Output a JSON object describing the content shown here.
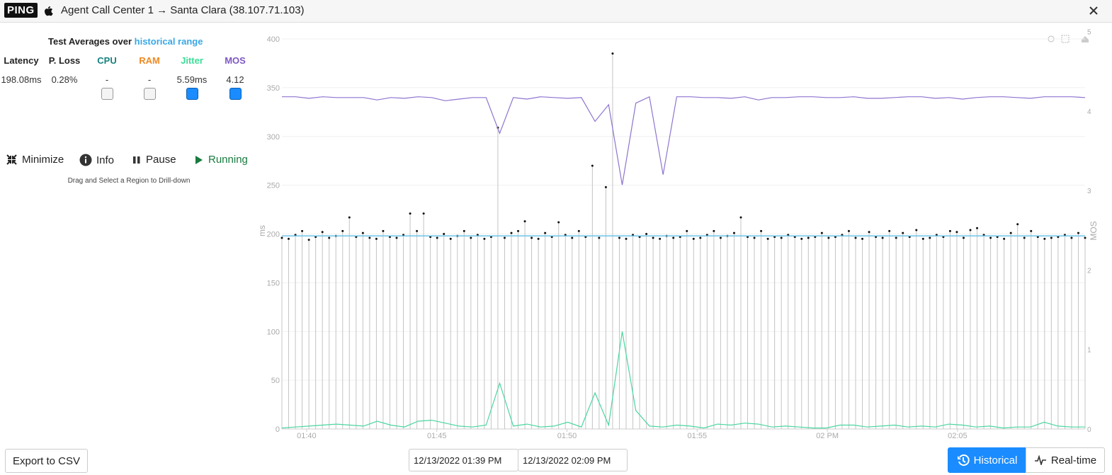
{
  "header": {
    "badge": "PING",
    "title": "Agent Call Center 1 → Santa Clara (38.107.71.103)"
  },
  "summary": {
    "heading": "Test Averages over ",
    "link": "historical range",
    "columns": [
      {
        "label": "Latency",
        "value": "198.08ms",
        "color": "#222222"
      },
      {
        "label": "P. Loss",
        "value": "0.28%",
        "color": "#222222"
      },
      {
        "label": "CPU",
        "value": "-",
        "color": "#16817e",
        "checked": false
      },
      {
        "label": "RAM",
        "value": "-",
        "color": "#f08a24",
        "checked": false
      },
      {
        "label": "Jitter",
        "value": "5.59ms",
        "color": "#3ddc97",
        "checked": true
      },
      {
        "label": "MOS",
        "value": "4.12",
        "color": "#7e57c2",
        "checked": true
      }
    ]
  },
  "controls": [
    "Minimize",
    "Info",
    "Pause",
    "Running"
  ],
  "hint": "Drag and Select a Region to Drill-down",
  "footer": {
    "export": "Export to CSV",
    "start": "12/13/2022 01:39 PM",
    "end": "12/13/2022 02:09 PM",
    "modes": [
      "Historical",
      "Real-time"
    ]
  },
  "chart_data": {
    "type": "combo",
    "y_label": "ms",
    "y2_label": "MOS",
    "xlim": [
      819.05,
      849.9
    ],
    "xticks": [
      {
        "value": 820,
        "label": "01:40"
      },
      {
        "value": 825,
        "label": "01:45"
      },
      {
        "value": 830,
        "label": "01:50"
      },
      {
        "value": 835,
        "label": "01:55"
      },
      {
        "value": 840,
        "label": "02 PM"
      },
      {
        "value": 845,
        "label": "02:05"
      }
    ],
    "ylim": [
      0,
      400
    ],
    "yticks": [
      0,
      50,
      100,
      150,
      200,
      250,
      300,
      350,
      400
    ],
    "y2lim": [
      0,
      5
    ],
    "y2ticks": [
      0,
      1,
      2,
      3,
      4,
      5
    ],
    "grid": true,
    "reference_line": {
      "value": 198,
      "color": "#6cc3ea"
    },
    "series": [
      {
        "type": "lollipop",
        "color": "#111111",
        "stem_color": "#c4c4c4",
        "values": [
          196,
          195,
          199,
          203,
          194,
          197,
          202,
          196,
          198,
          203,
          217,
          197,
          201,
          196,
          195,
          203,
          197,
          196,
          199,
          221,
          203,
          221,
          197,
          196,
          200,
          195,
          198,
          203,
          196,
          199,
          195,
          197,
          309,
          196,
          201,
          203,
          213,
          196,
          195,
          201,
          197,
          212,
          199,
          196,
          203,
          197,
          270,
          196,
          248,
          385,
          196,
          195,
          199,
          197,
          200,
          196,
          195,
          198,
          196,
          197,
          203,
          195,
          196,
          199,
          203,
          196,
          198,
          201,
          217,
          197,
          196,
          203,
          195,
          197,
          196,
          199,
          197,
          195,
          196,
          197,
          201,
          196,
          197,
          199,
          203,
          196,
          195,
          202,
          197,
          196,
          203,
          196,
          201,
          197,
          204,
          195,
          196,
          199,
          197,
          203,
          202,
          196,
          204,
          206,
          199,
          196,
          197,
          195,
          201,
          210,
          196,
          203,
          197,
          195,
          196,
          197,
          199,
          196,
          201,
          196
        ]
      },
      {
        "type": "line",
        "axis": "y2",
        "color": "#8e73cf",
        "values": [
          4.18,
          4.18,
          4.16,
          4.18,
          4.17,
          4.17,
          4.17,
          4.14,
          4.17,
          4.16,
          4.18,
          4.17,
          4.13,
          4.15,
          4.17,
          4.17,
          3.72,
          4.17,
          4.15,
          4.18,
          4.17,
          4.16,
          4.17,
          3.87,
          4.08,
          3.07,
          4.1,
          4.18,
          3.2,
          4.18,
          4.18,
          4.17,
          4.17,
          4.16,
          4.18,
          4.14,
          4.17,
          4.17,
          4.18,
          4.18,
          4.17,
          4.17,
          4.18,
          4.16,
          4.16,
          4.17,
          4.18,
          4.18,
          4.16,
          4.17,
          4.15,
          4.17,
          4.18,
          4.18,
          4.17,
          4.16,
          4.18,
          4.18,
          4.18,
          4.17
        ]
      },
      {
        "type": "line",
        "color": "#4bd6a0",
        "values": [
          1,
          2,
          3,
          4,
          5,
          4,
          3,
          8,
          4,
          2,
          8,
          9,
          6,
          3,
          2,
          4,
          47,
          3,
          5,
          2,
          3,
          7,
          2,
          37,
          4,
          100,
          19,
          3,
          2,
          4,
          3,
          1,
          5,
          4,
          6,
          5,
          2,
          3,
          2,
          1,
          1,
          4,
          4,
          2,
          3,
          4,
          2,
          3,
          2,
          5,
          4,
          2,
          3,
          1,
          2,
          2,
          7,
          3,
          2,
          2
        ]
      }
    ]
  }
}
